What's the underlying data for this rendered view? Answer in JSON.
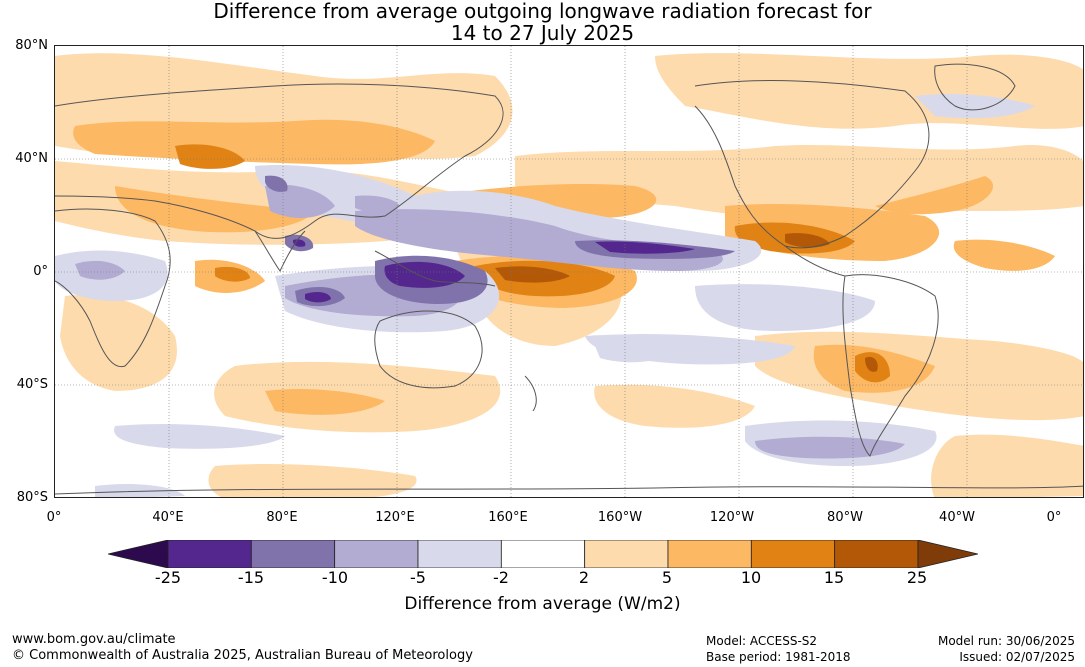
{
  "title": {
    "line1": "Difference from average outgoing longwave radiation forecast for",
    "line2": "14 to 27 July 2025"
  },
  "map": {
    "lat_labels": [
      "80°N",
      "40°N",
      "0°",
      "40°S",
      "80°S"
    ],
    "lon_labels": [
      "0°",
      "40°E",
      "80°E",
      "120°E",
      "160°E",
      "160°W",
      "120°W",
      "80°W",
      "40°W",
      "0°"
    ]
  },
  "colorbar": {
    "ticks": [
      "-25",
      "-15",
      "-10",
      "-5",
      "-2",
      "2",
      "5",
      "10",
      "15",
      "25"
    ],
    "colors": [
      "#2d0a4e",
      "#54278f",
      "#8073ac",
      "#b2abd2",
      "#d8daeb",
      "#ffffff",
      "#fddbad",
      "#fdb863",
      "#e08214",
      "#b35806",
      "#7f3b08"
    ],
    "label": "Difference from average (W/m2)"
  },
  "footer": {
    "url": "www.bom.gov.au/climate",
    "copyright": "© Commonwealth of Australia 2025, Australian Bureau of Meteorology",
    "model": "Model: ACCESS-S2",
    "base_period": "Base period: 1981-2018",
    "model_run": "Model run: 30/06/2025",
    "issued": "Issued: 02/07/2025"
  }
}
